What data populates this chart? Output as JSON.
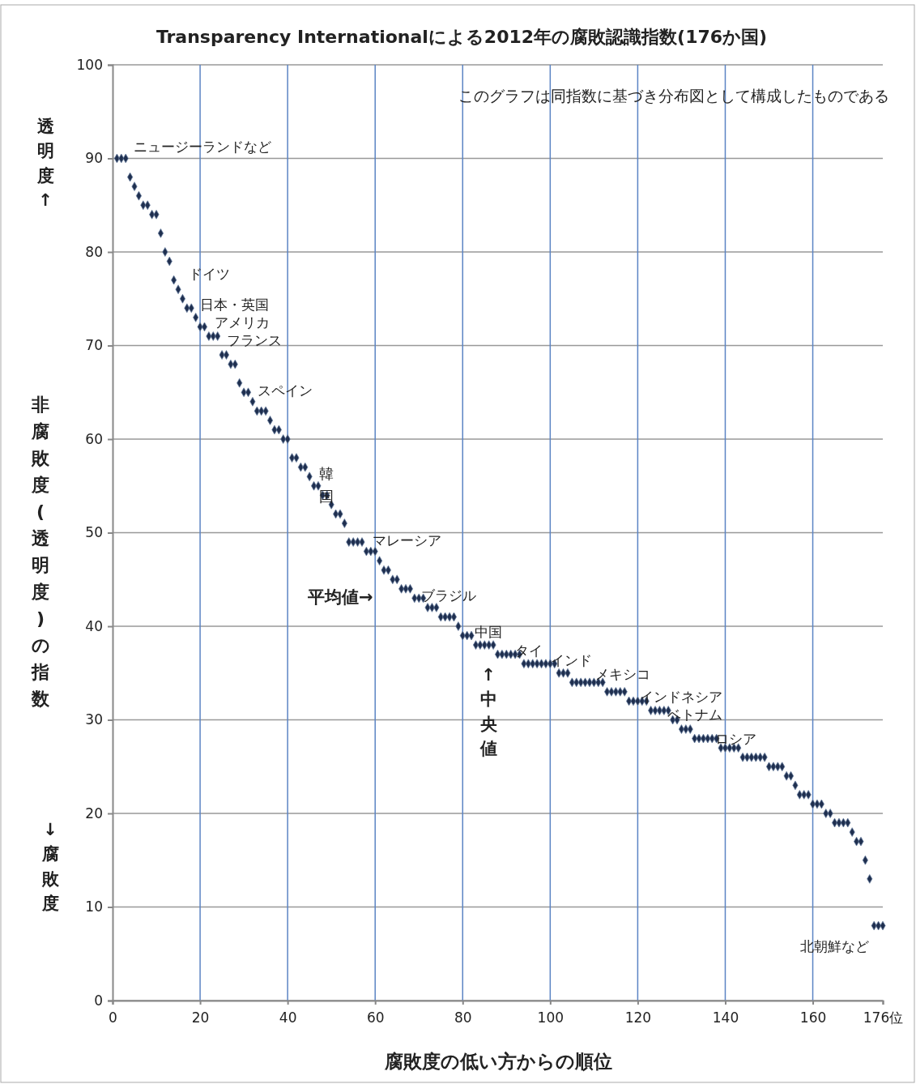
{
  "chart_data": {
    "type": "scatter",
    "title": "Transparency Internationalによる2012年の腐敗認識指数(176か国)",
    "xlabel": "腐敗度の低い方からの順位",
    "ylabel": "非腐敗度(透明度)の指数",
    "xlim": [
      0,
      176
    ],
    "xticks": [
      0,
      20,
      40,
      60,
      80,
      100,
      120,
      140,
      160,
      {
        "value": 176,
        "label": "176位"
      }
    ],
    "ylim": [
      0,
      100
    ],
    "yticks": [
      0,
      10,
      20,
      30,
      40,
      50,
      60,
      70,
      80,
      90,
      100
    ],
    "grid": true,
    "marker": "diamond",
    "x": [
      1,
      2,
      3,
      4,
      5,
      6,
      7,
      8,
      9,
      10,
      11,
      12,
      13,
      14,
      15,
      16,
      17,
      18,
      19,
      20,
      21,
      22,
      23,
      24,
      25,
      26,
      27,
      28,
      29,
      30,
      31,
      32,
      33,
      34,
      35,
      36,
      37,
      38,
      39,
      40,
      41,
      42,
      43,
      44,
      45,
      46,
      47,
      48,
      49,
      50,
      51,
      52,
      53,
      54,
      55,
      56,
      57,
      58,
      59,
      60,
      61,
      62,
      63,
      64,
      65,
      66,
      67,
      68,
      69,
      70,
      71,
      72,
      73,
      74,
      75,
      76,
      77,
      78,
      79,
      80,
      81,
      82,
      83,
      84,
      85,
      86,
      87,
      88,
      89,
      90,
      91,
      92,
      93,
      94,
      95,
      96,
      97,
      98,
      99,
      100,
      101,
      102,
      103,
      104,
      105,
      106,
      107,
      108,
      109,
      110,
      111,
      112,
      113,
      114,
      115,
      116,
      117,
      118,
      119,
      120,
      121,
      122,
      123,
      124,
      125,
      126,
      127,
      128,
      129,
      130,
      131,
      132,
      133,
      134,
      135,
      136,
      137,
      138,
      139,
      140,
      141,
      142,
      143,
      144,
      145,
      146,
      147,
      148,
      149,
      150,
      151,
      152,
      153,
      154,
      155,
      156,
      157,
      158,
      159,
      160,
      161,
      162,
      163,
      164,
      165,
      166,
      167,
      168,
      169,
      170,
      171,
      172,
      173,
      174,
      175,
      176
    ],
    "series": [
      {
        "color": "#1f2f4f",
        "values": [
          90,
          90,
          90,
          88,
          87,
          86,
          85,
          85,
          84,
          84,
          82,
          80,
          79,
          77,
          76,
          75,
          74,
          74,
          73,
          72,
          72,
          71,
          71,
          71,
          69,
          69,
          68,
          68,
          66,
          65,
          65,
          64,
          63,
          63,
          63,
          62,
          61,
          61,
          60,
          60,
          58,
          58,
          57,
          57,
          56,
          55,
          55,
          54,
          54,
          53,
          52,
          52,
          51,
          49,
          49,
          49,
          49,
          48,
          48,
          48,
          47,
          46,
          46,
          45,
          45,
          44,
          44,
          44,
          43,
          43,
          43,
          42,
          42,
          42,
          41,
          41,
          41,
          41,
          40,
          39,
          39,
          39,
          38,
          38,
          38,
          38,
          38,
          37,
          37,
          37,
          37,
          37,
          37,
          36,
          36,
          36,
          36,
          36,
          36,
          36,
          36,
          35,
          35,
          35,
          34,
          34,
          34,
          34,
          34,
          34,
          34,
          34,
          33,
          33,
          33,
          33,
          33,
          32,
          32,
          32,
          32,
          32,
          31,
          31,
          31,
          31,
          31,
          30,
          30,
          29,
          29,
          29,
          28,
          28,
          28,
          28,
          28,
          28,
          27,
          27,
          27,
          27,
          27,
          26,
          26,
          26,
          26,
          26,
          26,
          25,
          25,
          25,
          25,
          24,
          24,
          23,
          22,
          22,
          22,
          21,
          21,
          21,
          20,
          20,
          19,
          19,
          19,
          19,
          18,
          17,
          17,
          15,
          13,
          8,
          8,
          8
        ]
      }
    ],
    "annotations": [
      "このグラフは同指数に基づき分布図として構成したものである",
      "透明度↑",
      "↓腐敗度",
      "平均値→",
      "↑中央値",
      {
        "text": "ニュージーランドなど",
        "x": 3,
        "y": 90
      },
      {
        "text": "ドイツ",
        "x": 13,
        "y": 79
      },
      {
        "text": "日本・英国",
        "x": 17,
        "y": 74
      },
      {
        "text": "アメリカ",
        "x": 19,
        "y": 73
      },
      {
        "text": "フランス",
        "x": 23,
        "y": 71
      },
      {
        "text": "スペイン",
        "x": 31,
        "y": 65
      },
      {
        "text": "韓国",
        "x": 45,
        "y": 56
      },
      {
        "text": "マレーシア",
        "x": 56,
        "y": 49
      },
      {
        "text": "ブラジル",
        "x": 69,
        "y": 43
      },
      {
        "text": "中国",
        "x": 80,
        "y": 39
      },
      {
        "text": "タイ",
        "x": 92,
        "y": 37
      },
      {
        "text": "インド",
        "x": 99,
        "y": 36
      },
      {
        "text": "メキシコ",
        "x": 111,
        "y": 34
      },
      {
        "text": "インドネシア",
        "x": 121,
        "y": 32
      },
      {
        "text": "ベトナム",
        "x": 127,
        "y": 31
      },
      {
        "text": "ロシア",
        "x": 138,
        "y": 28
      },
      {
        "text": "北朝鮮など",
        "x": 175,
        "y": 8
      }
    ]
  }
}
